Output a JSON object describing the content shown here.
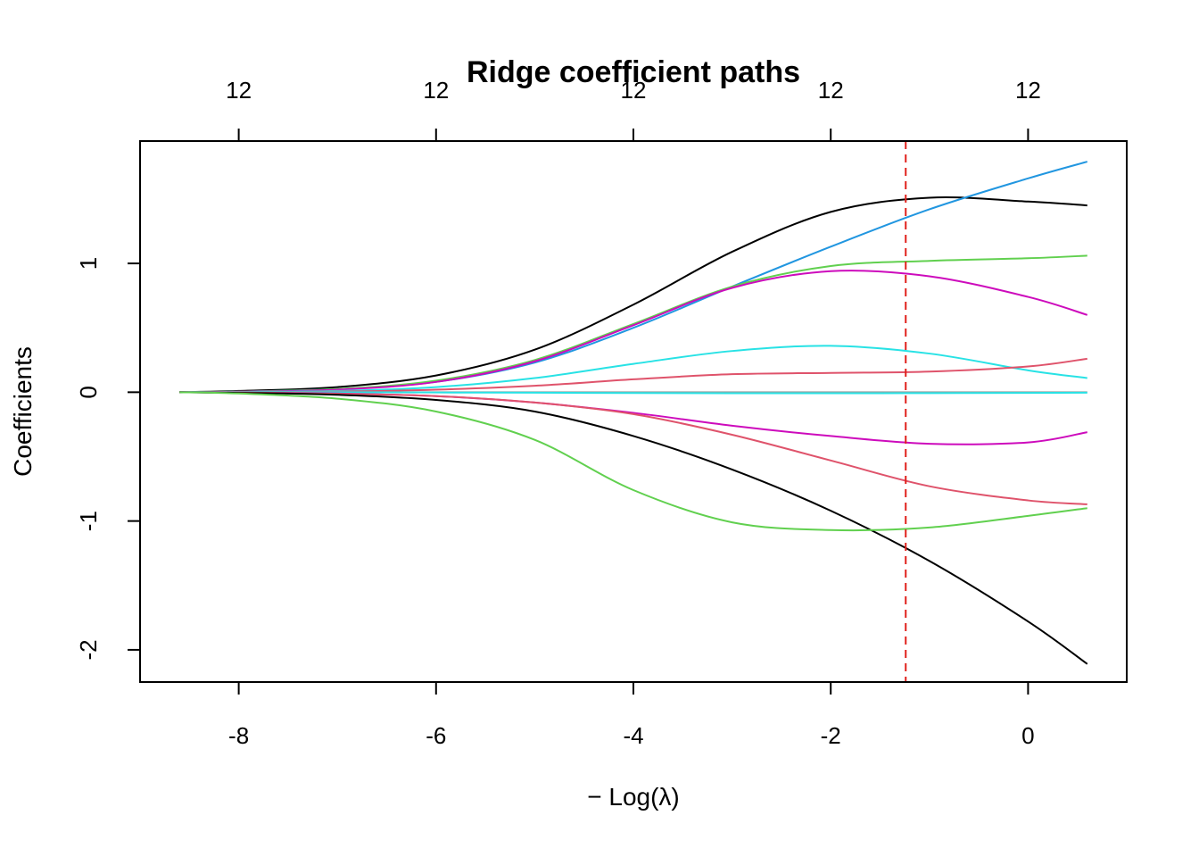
{
  "chart_data": {
    "type": "line",
    "title": "Ridge coefficient paths",
    "xlabel": "− Log(λ)",
    "ylabel": "Coefficients",
    "xlim": [
      -9,
      1
    ],
    "ylim": [
      -2.25,
      1.95
    ],
    "x_ticks": [
      -8,
      -6,
      -4,
      -2,
      0
    ],
    "x_tick_labels": [
      "-8",
      "-6",
      "-4",
      "-2",
      "0"
    ],
    "y_ticks": [
      -2,
      -1,
      0,
      1
    ],
    "y_tick_labels": [
      "-2",
      "-1",
      "0",
      "1"
    ],
    "top_ticks": [
      -8,
      -6,
      -4,
      -2,
      0
    ],
    "top_tick_labels": [
      "12",
      "12",
      "12",
      "12",
      "12"
    ],
    "vline_x": -1.24,
    "vline_color": "#e0201b",
    "grid": false,
    "x": [
      -8.6,
      -8,
      -7,
      -6,
      -5,
      -4,
      -3,
      -2,
      -1,
      0,
      0.6
    ],
    "series": [
      {
        "color": "#000000",
        "values": [
          0,
          0.01,
          0.04,
          0.13,
          0.33,
          0.68,
          1.09,
          1.4,
          1.51,
          1.48,
          1.45
        ]
      },
      {
        "color": "#2196e0",
        "values": [
          0,
          0.005,
          0.025,
          0.08,
          0.23,
          0.5,
          0.82,
          1.13,
          1.42,
          1.66,
          1.79
        ]
      },
      {
        "color": "#61d04f",
        "values": [
          0,
          0.005,
          0.025,
          0.09,
          0.25,
          0.53,
          0.82,
          0.98,
          1.02,
          1.04,
          1.06
        ]
      },
      {
        "color": "#cd0bbc",
        "values": [
          0,
          0.004,
          0.02,
          0.08,
          0.24,
          0.52,
          0.81,
          0.94,
          0.9,
          0.74,
          0.6
        ]
      },
      {
        "color": "#28e2e5",
        "values": [
          0,
          0.002,
          0.01,
          0.04,
          0.11,
          0.22,
          0.32,
          0.36,
          0.3,
          0.17,
          0.11
        ]
      },
      {
        "color": "#df536b",
        "values": [
          0,
          0.001,
          0.005,
          0.02,
          0.05,
          0.1,
          0.14,
          0.15,
          0.16,
          0.2,
          0.26
        ]
      },
      {
        "color": "#9e9e9e",
        "values": [
          0,
          0,
          0,
          0,
          0,
          0,
          0,
          0,
          0,
          0,
          0
        ]
      },
      {
        "color": "#28e2e5",
        "values": [
          0,
          0,
          0,
          -0.002,
          -0.004,
          -0.006,
          -0.008,
          -0.008,
          -0.007,
          -0.005,
          -0.004
        ]
      },
      {
        "color": "#cd0bbc",
        "values": [
          0,
          -0.003,
          -0.01,
          -0.03,
          -0.08,
          -0.16,
          -0.26,
          -0.34,
          -0.4,
          -0.39,
          -0.31
        ]
      },
      {
        "color": "#df536b",
        "values": [
          0,
          -0.003,
          -0.012,
          -0.03,
          -0.08,
          -0.17,
          -0.33,
          -0.53,
          -0.73,
          -0.84,
          -0.87
        ]
      },
      {
        "color": "#000000",
        "values": [
          0,
          -0.005,
          -0.02,
          -0.06,
          -0.15,
          -0.34,
          -0.6,
          -0.92,
          -1.31,
          -1.78,
          -2.11
        ]
      },
      {
        "color": "#61d04f",
        "values": [
          0,
          -0.01,
          -0.05,
          -0.15,
          -0.37,
          -0.76,
          -1.01,
          -1.07,
          -1.05,
          -0.96,
          -0.9
        ]
      }
    ]
  }
}
